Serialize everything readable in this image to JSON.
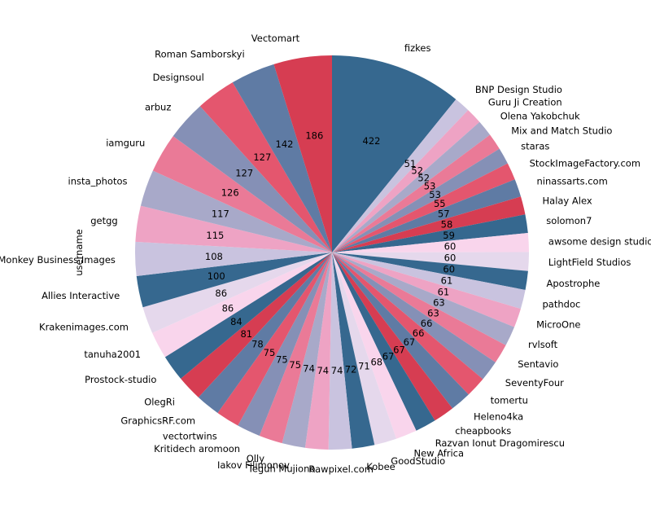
{
  "chart_data": {
    "type": "pie",
    "title": "",
    "ylabel": "username",
    "start_angle_deg": 90,
    "direction": "clockwise",
    "slices": [
      {
        "label": "fizkes",
        "value": 422
      },
      {
        "label": "BNP Design Studio",
        "value": 51
      },
      {
        "label": "Guru Ji Creation",
        "value": 52
      },
      {
        "label": "Olena Yakobchuk",
        "value": 52
      },
      {
        "label": "Mix and Match Studio",
        "value": 53
      },
      {
        "label": "staras",
        "value": 53
      },
      {
        "label": "StockImageFactory.com",
        "value": 55
      },
      {
        "label": "ninassarts.com",
        "value": 57
      },
      {
        "label": "Halay Alex",
        "value": 58
      },
      {
        "label": "solomon7",
        "value": 59
      },
      {
        "label": "awsome design studio",
        "value": 60
      },
      {
        "label": "LightField Studios",
        "value": 60
      },
      {
        "label": "Apostrophe",
        "value": 60
      },
      {
        "label": "pathdoc",
        "value": 61
      },
      {
        "label": "MicroOne",
        "value": 61
      },
      {
        "label": "rvlsoft",
        "value": 63
      },
      {
        "label": "Sentavio",
        "value": 63
      },
      {
        "label": "SeventyFour",
        "value": 66
      },
      {
        "label": "tomertu",
        "value": 66
      },
      {
        "label": "Heleno4ka",
        "value": 67
      },
      {
        "label": "cheapbooks",
        "value": 67
      },
      {
        "label": "Razvan Ionut Dragomirescu",
        "value": 67
      },
      {
        "label": "New Africa",
        "value": 68
      },
      {
        "label": "GoodStudio",
        "value": 71
      },
      {
        "label": "Kobee",
        "value": 72
      },
      {
        "label": "Rawpixel.com",
        "value": 74
      },
      {
        "label": "Teguh Mujiono",
        "value": 74
      },
      {
        "label": "Iakov Filimonov",
        "value": 74
      },
      {
        "label": "Olly",
        "value": 75
      },
      {
        "label": "Kritidech aromoon",
        "value": 75
      },
      {
        "label": "vectortwins",
        "value": 75
      },
      {
        "label": "GraphicsRF.com",
        "value": 78
      },
      {
        "label": "OlegRi",
        "value": 81
      },
      {
        "label": "Prostock-studio",
        "value": 84
      },
      {
        "label": "tanuha2001",
        "value": 86
      },
      {
        "label": "Krakenimages.com",
        "value": 86
      },
      {
        "label": "Allies Interactive",
        "value": 100
      },
      {
        "label": "Monkey Business Images",
        "value": 108
      },
      {
        "label": "getgg",
        "value": 115
      },
      {
        "label": "insta_photos",
        "value": 117
      },
      {
        "label": "iamguru",
        "value": 126
      },
      {
        "label": "arbuz",
        "value": 127
      },
      {
        "label": "Designsoul",
        "value": 127
      },
      {
        "label": "Roman Samborskyi",
        "value": 142
      },
      {
        "label": "Vectomart",
        "value": 186
      }
    ],
    "colors": [
      "#36688f",
      "#c9c3df",
      "#eea3c4",
      "#a8a9c9",
      "#ea7a97",
      "#8590b6",
      "#e4566e",
      "#5f7ba4",
      "#d63d52",
      "#36688f",
      "#f9d5ec",
      "#e5d8ec"
    ]
  }
}
